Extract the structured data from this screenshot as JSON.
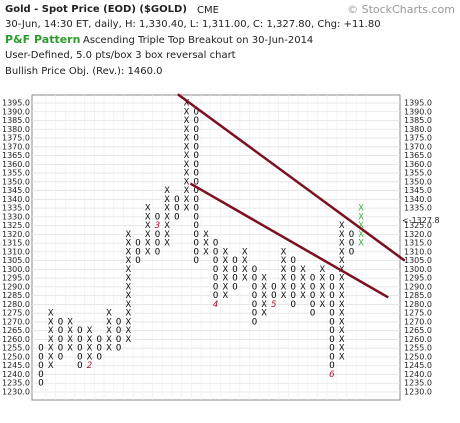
{
  "chart_data": {
    "type": "point-and-figure",
    "title": "Gold - Spot Price (EOD) ($GOLD)",
    "exchange": "CME",
    "quote_line": "30-Jun, 14:30 ET, daily, H: 1,330.40, L: 1,311.00, C: 1,327.80, Chg: +11.80",
    "pattern_label": "P&F Pattern",
    "pattern": "Ascending Triple Top Breakout on 30-Jun-2014",
    "settings_line": "User-Defined, 5.0 pts/box 3 box reversal chart",
    "objective": "Bullish Price Obj. (Rev.): 1460.0",
    "watermark": "© StockCharts.com",
    "box_size": 5,
    "columns": [
      {
        "type": "O",
        "low": 1235,
        "high": 1255
      },
      {
        "type": "X",
        "low": 1245,
        "high": 1275
      },
      {
        "type": "O",
        "low": 1250,
        "high": 1270
      },
      {
        "type": "X",
        "low": 1255,
        "high": 1270
      },
      {
        "type": "O",
        "low": 1245,
        "high": 1265
      },
      {
        "type": "X",
        "low": 1245,
        "high": 1265
      },
      {
        "type": "O",
        "low": 1250,
        "high": 1260
      },
      {
        "type": "X",
        "low": 1255,
        "high": 1275
      },
      {
        "type": "O",
        "low": 1255,
        "high": 1270
      },
      {
        "type": "X",
        "low": 1260,
        "high": 1320
      },
      {
        "type": "O",
        "low": 1305,
        "high": 1315
      },
      {
        "type": "X",
        "low": 1310,
        "high": 1335
      },
      {
        "type": "O",
        "low": 1310,
        "high": 1330
      },
      {
        "type": "X",
        "low": 1315,
        "high": 1345
      },
      {
        "type": "O",
        "low": 1330,
        "high": 1340
      },
      {
        "type": "X",
        "low": 1335,
        "high": 1395
      },
      {
        "type": "O",
        "low": 1305,
        "high": 1390
      },
      {
        "type": "X",
        "low": 1310,
        "high": 1320
      },
      {
        "type": "O",
        "low": 1280,
        "high": 1315
      },
      {
        "type": "X",
        "low": 1285,
        "high": 1310
      },
      {
        "type": "O",
        "low": 1290,
        "high": 1305
      },
      {
        "type": "X",
        "low": 1295,
        "high": 1310
      },
      {
        "type": "O",
        "low": 1270,
        "high": 1300
      },
      {
        "type": "X",
        "low": 1275,
        "high": 1295
      },
      {
        "type": "O",
        "low": 1280,
        "high": 1290
      },
      {
        "type": "X",
        "low": 1285,
        "high": 1310
      },
      {
        "type": "O",
        "low": 1280,
        "high": 1305
      },
      {
        "type": "X",
        "low": 1285,
        "high": 1300
      },
      {
        "type": "O",
        "low": 1275,
        "high": 1295
      },
      {
        "type": "X",
        "low": 1280,
        "high": 1300
      },
      {
        "type": "O",
        "low": 1240,
        "high": 1295
      },
      {
        "type": "X",
        "low": 1250,
        "high": 1325
      },
      {
        "type": "O",
        "low": 1310,
        "high": 1320
      },
      {
        "type": "X",
        "low": 1315,
        "high": 1335
      }
    ],
    "month_markers": [
      {
        "column": 5,
        "price": 1245,
        "label": "2"
      },
      {
        "column": 12,
        "price": 1325,
        "label": "3"
      },
      {
        "column": 18,
        "price": 1280,
        "label": "4"
      },
      {
        "column": 24,
        "price": 1280,
        "label": "5"
      },
      {
        "column": 30,
        "price": 1240,
        "label": "6"
      }
    ],
    "trendlines": [
      {
        "from": [
          14.1,
          1400
        ],
        "to": [
          37.5,
          1305
        ]
      },
      {
        "from": [
          15.4,
          1349
        ],
        "to": [
          35.8,
          1284
        ]
      }
    ],
    "last_price": {
      "value": 1327.8,
      "label": "<-1327.8"
    },
    "box_color": "#111111",
    "latest_color": "#3cb043",
    "trendline_color": "#7a1020",
    "marker_color": "#b01030",
    "grid": true,
    "ylim": [
      1230,
      1395
    ],
    "yticks": [
      {
        "value": 1395,
        "label": "1395.0"
      },
      {
        "value": 1390,
        "label": "1390.0"
      },
      {
        "value": 1385,
        "label": "1385.0"
      },
      {
        "value": 1380,
        "label": "1380.0"
      },
      {
        "value": 1375,
        "label": "1375.0"
      },
      {
        "value": 1370,
        "label": "1370.0"
      },
      {
        "value": 1365,
        "label": "1365.0"
      },
      {
        "value": 1360,
        "label": "1360.0"
      },
      {
        "value": 1355,
        "label": "1355.0"
      },
      {
        "value": 1350,
        "label": "1350.0"
      },
      {
        "value": 1345,
        "label": "1345.0"
      },
      {
        "value": 1340,
        "label": "1340.0"
      },
      {
        "value": 1335,
        "label": "1335.0"
      },
      {
        "value": 1330,
        "label": "1330.0"
      },
      {
        "value": 1325,
        "label": "1325.0"
      },
      {
        "value": 1320,
        "label": "1320.0"
      },
      {
        "value": 1315,
        "label": "1315.0"
      },
      {
        "value": 1310,
        "label": "1310.0"
      },
      {
        "value": 1305,
        "label": "1305.0"
      },
      {
        "value": 1300,
        "label": "1300.0"
      },
      {
        "value": 1295,
        "label": "1295.0"
      },
      {
        "value": 1290,
        "label": "1290.0"
      },
      {
        "value": 1285,
        "label": "1285.0"
      },
      {
        "value": 1280,
        "label": "1280.0"
      },
      {
        "value": 1275,
        "label": "1275.0"
      },
      {
        "value": 1270,
        "label": "1270.0"
      },
      {
        "value": 1265,
        "label": "1265.0"
      },
      {
        "value": 1260,
        "label": "1260.0"
      },
      {
        "value": 1255,
        "label": "1255.0"
      },
      {
        "value": 1250,
        "label": "1250.0"
      },
      {
        "value": 1245,
        "label": "1245.0"
      },
      {
        "value": 1240,
        "label": "1240.0"
      },
      {
        "value": 1235,
        "label": "1235.0"
      },
      {
        "value": 1230,
        "label": "1230.0"
      }
    ]
  }
}
